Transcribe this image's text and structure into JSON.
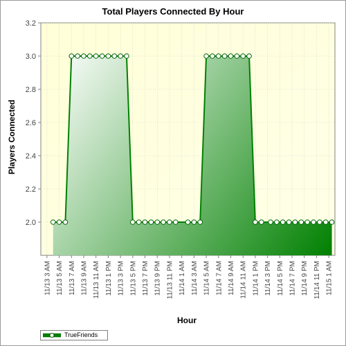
{
  "chart_data": {
    "type": "area",
    "title": "Total Players Connected By Hour",
    "xlabel": "Hour",
    "ylabel": "Players Connected",
    "ylim": [
      1.8,
      3.2
    ],
    "yticks": [
      "2.0",
      "2.2",
      "2.4",
      "2.6",
      "2.8",
      "3.0",
      "3.2"
    ],
    "xtick_labels": [
      "11/13 3 AM",
      "11/13 5 AM",
      "11/13 7 AM",
      "11/13 9 AM",
      "11/13 11 AM",
      "11/13 1 PM",
      "11/13 3 PM",
      "11/13 5 PM",
      "11/13 7 PM",
      "11/13 9 PM",
      "11/13 11 PM",
      "11/14 1 AM",
      "11/14 3 AM",
      "11/14 5 AM",
      "11/14 7 AM",
      "11/14 9 AM",
      "11/14 11 AM",
      "11/14 1 PM",
      "11/14 3 PM",
      "11/14 5 PM",
      "11/14 7 PM",
      "11/14 9 PM",
      "11/14 11 PM",
      "11/15 1 AM"
    ],
    "grid": true,
    "legend_position": "bottom-left",
    "series": [
      {
        "name": "TrueFriends",
        "color": "#008000",
        "points": [
          [
            2.0,
            2.0
          ],
          [
            3.0,
            2.0
          ],
          [
            4.0,
            2.0
          ],
          [
            5.0,
            3.0
          ],
          [
            6.0,
            3.0
          ],
          [
            7.0,
            3.0
          ],
          [
            8.0,
            3.0
          ],
          [
            9.0,
            3.0
          ],
          [
            10.0,
            3.0
          ],
          [
            11.0,
            3.0
          ],
          [
            12.0,
            3.0
          ],
          [
            13.0,
            3.0
          ],
          [
            14.0,
            3.0
          ],
          [
            15.0,
            2.0
          ],
          [
            16.0,
            2.0
          ],
          [
            17.0,
            2.0
          ],
          [
            18.0,
            2.0
          ],
          [
            19.0,
            2.0
          ],
          [
            20.0,
            2.0
          ],
          [
            21.0,
            2.0
          ],
          [
            22.0,
            2.0
          ],
          [
            24.0,
            2.0
          ],
          [
            25.0,
            2.0
          ],
          [
            26.0,
            2.0
          ],
          [
            27.0,
            3.0
          ],
          [
            28.0,
            3.0
          ],
          [
            29.0,
            3.0
          ],
          [
            30.0,
            3.0
          ],
          [
            31.0,
            3.0
          ],
          [
            32.0,
            3.0
          ],
          [
            33.0,
            3.0
          ],
          [
            34.0,
            3.0
          ],
          [
            35.0,
            2.0
          ],
          [
            36.0,
            2.0
          ],
          [
            37.5,
            2.0
          ],
          [
            38.5,
            2.0
          ],
          [
            39.5,
            2.0
          ],
          [
            40.5,
            2.0
          ],
          [
            41.5,
            2.0
          ],
          [
            42.5,
            2.0
          ],
          [
            43.5,
            2.0
          ],
          [
            44.5,
            2.0
          ],
          [
            45.5,
            2.0
          ],
          [
            46.5,
            2.0
          ],
          [
            47.5,
            2.0
          ]
        ]
      }
    ]
  }
}
